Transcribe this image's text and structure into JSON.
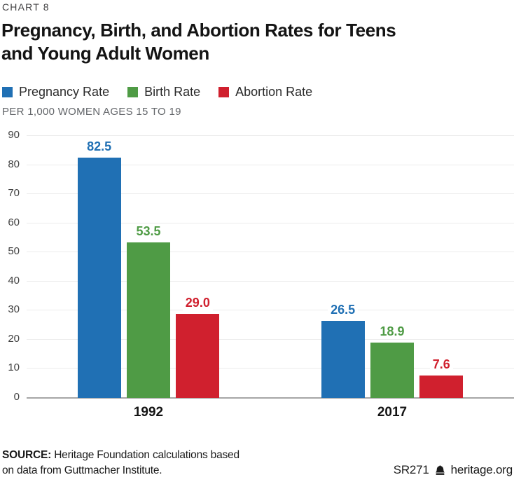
{
  "header": {
    "eyebrow": "CHART 8",
    "title_line1": "Pregnancy, Birth, and Abortion Rates for Teens",
    "title_line2": "and Young Adult Women"
  },
  "chart_data": {
    "type": "bar",
    "title": "Pregnancy, Birth, and Abortion Rates for Teens and Young Adult Women",
    "axis_note": "PER 1,000 WOMEN AGES 15 TO 19",
    "categories": [
      "1992",
      "2017"
    ],
    "series": [
      {
        "name": "Pregnancy Rate",
        "color": "#2070b4",
        "values": [
          82.5,
          26.5
        ]
      },
      {
        "name": "Birth Rate",
        "color": "#4f9b45",
        "values": [
          53.5,
          18.9
        ]
      },
      {
        "name": "Abortion Rate",
        "color": "#d0202e",
        "values": [
          29.0,
          7.6
        ]
      }
    ],
    "ylim": [
      0,
      90
    ],
    "yticks": [
      0,
      10,
      20,
      30,
      40,
      50,
      60,
      70,
      80,
      90
    ],
    "grid": true,
    "legend_position": "top",
    "colors": {
      "gridline": "#ececec",
      "axis_line": "#a6a6a6",
      "tick_text": "#414141",
      "note_text": "#63666a"
    }
  },
  "footer": {
    "source_label": "SOURCE:",
    "source_line1": "Heritage Foundation calculations based",
    "source_line2": "on data from Guttmacher Institute.",
    "report_id": "SR271",
    "site": "heritage.org"
  }
}
